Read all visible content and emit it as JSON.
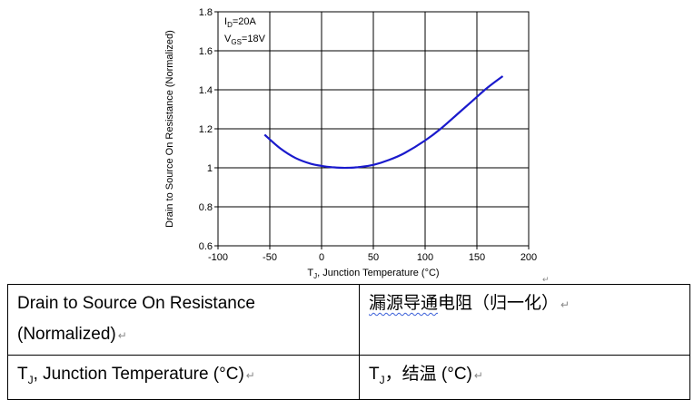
{
  "chart_data": {
    "type": "line",
    "xlabel_main": "T",
    "xlabel_sub": "J",
    "xlabel_rest": ", Junction Temperature (°C)",
    "ylabel": "Drain to Source On Resistance (Normalized)",
    "xlim": [
      -100,
      200
    ],
    "ylim": [
      0.6,
      1.8
    ],
    "x_ticks": [
      -100,
      -50,
      0,
      50,
      100,
      150,
      200
    ],
    "y_ticks": [
      0.6,
      0.8,
      1,
      1.2,
      1.4,
      1.6,
      1.8
    ],
    "x_tick_labels": [
      "-100",
      "-50",
      "0",
      "50",
      "100",
      "150",
      "200"
    ],
    "y_tick_labels": [
      "0.6",
      "0.8",
      "1",
      "1.2",
      "1.4",
      "1.6",
      "1.8"
    ],
    "grid": true,
    "annotations": [
      {
        "main": "I",
        "sub": "D",
        "rest": "=20A"
      },
      {
        "main": "V",
        "sub": "GS",
        "rest": "=18V"
      }
    ],
    "series": [
      {
        "color": "#1a1acc",
        "x": [
          -55,
          -40,
          -25,
          -10,
          0,
          10,
          20,
          25,
          35,
          50,
          65,
          80,
          100,
          115,
          130,
          145,
          160,
          175
        ],
        "y": [
          1.17,
          1.1,
          1.05,
          1.02,
          1.01,
          1.003,
          1.0,
          1.0,
          1.003,
          1.015,
          1.04,
          1.075,
          1.14,
          1.2,
          1.27,
          1.34,
          1.41,
          1.47
        ]
      }
    ]
  },
  "table": {
    "row1_en_line1": "Drain to Source On Resistance",
    "row1_en_line2": "(Normalized)",
    "row1_zh_a": "漏源导通",
    "row1_zh_b": "电阻（归一化）",
    "row2_en_main": "T",
    "row2_en_sub": "J",
    "row2_en_rest": ", Junction Temperature (°C)",
    "row2_zh_main": "T",
    "row2_zh_sub": "J",
    "row2_zh_rest": "，结温 (°C)"
  },
  "marks": {
    "paragraph_mark": "↵",
    "return_mark": "↵"
  }
}
